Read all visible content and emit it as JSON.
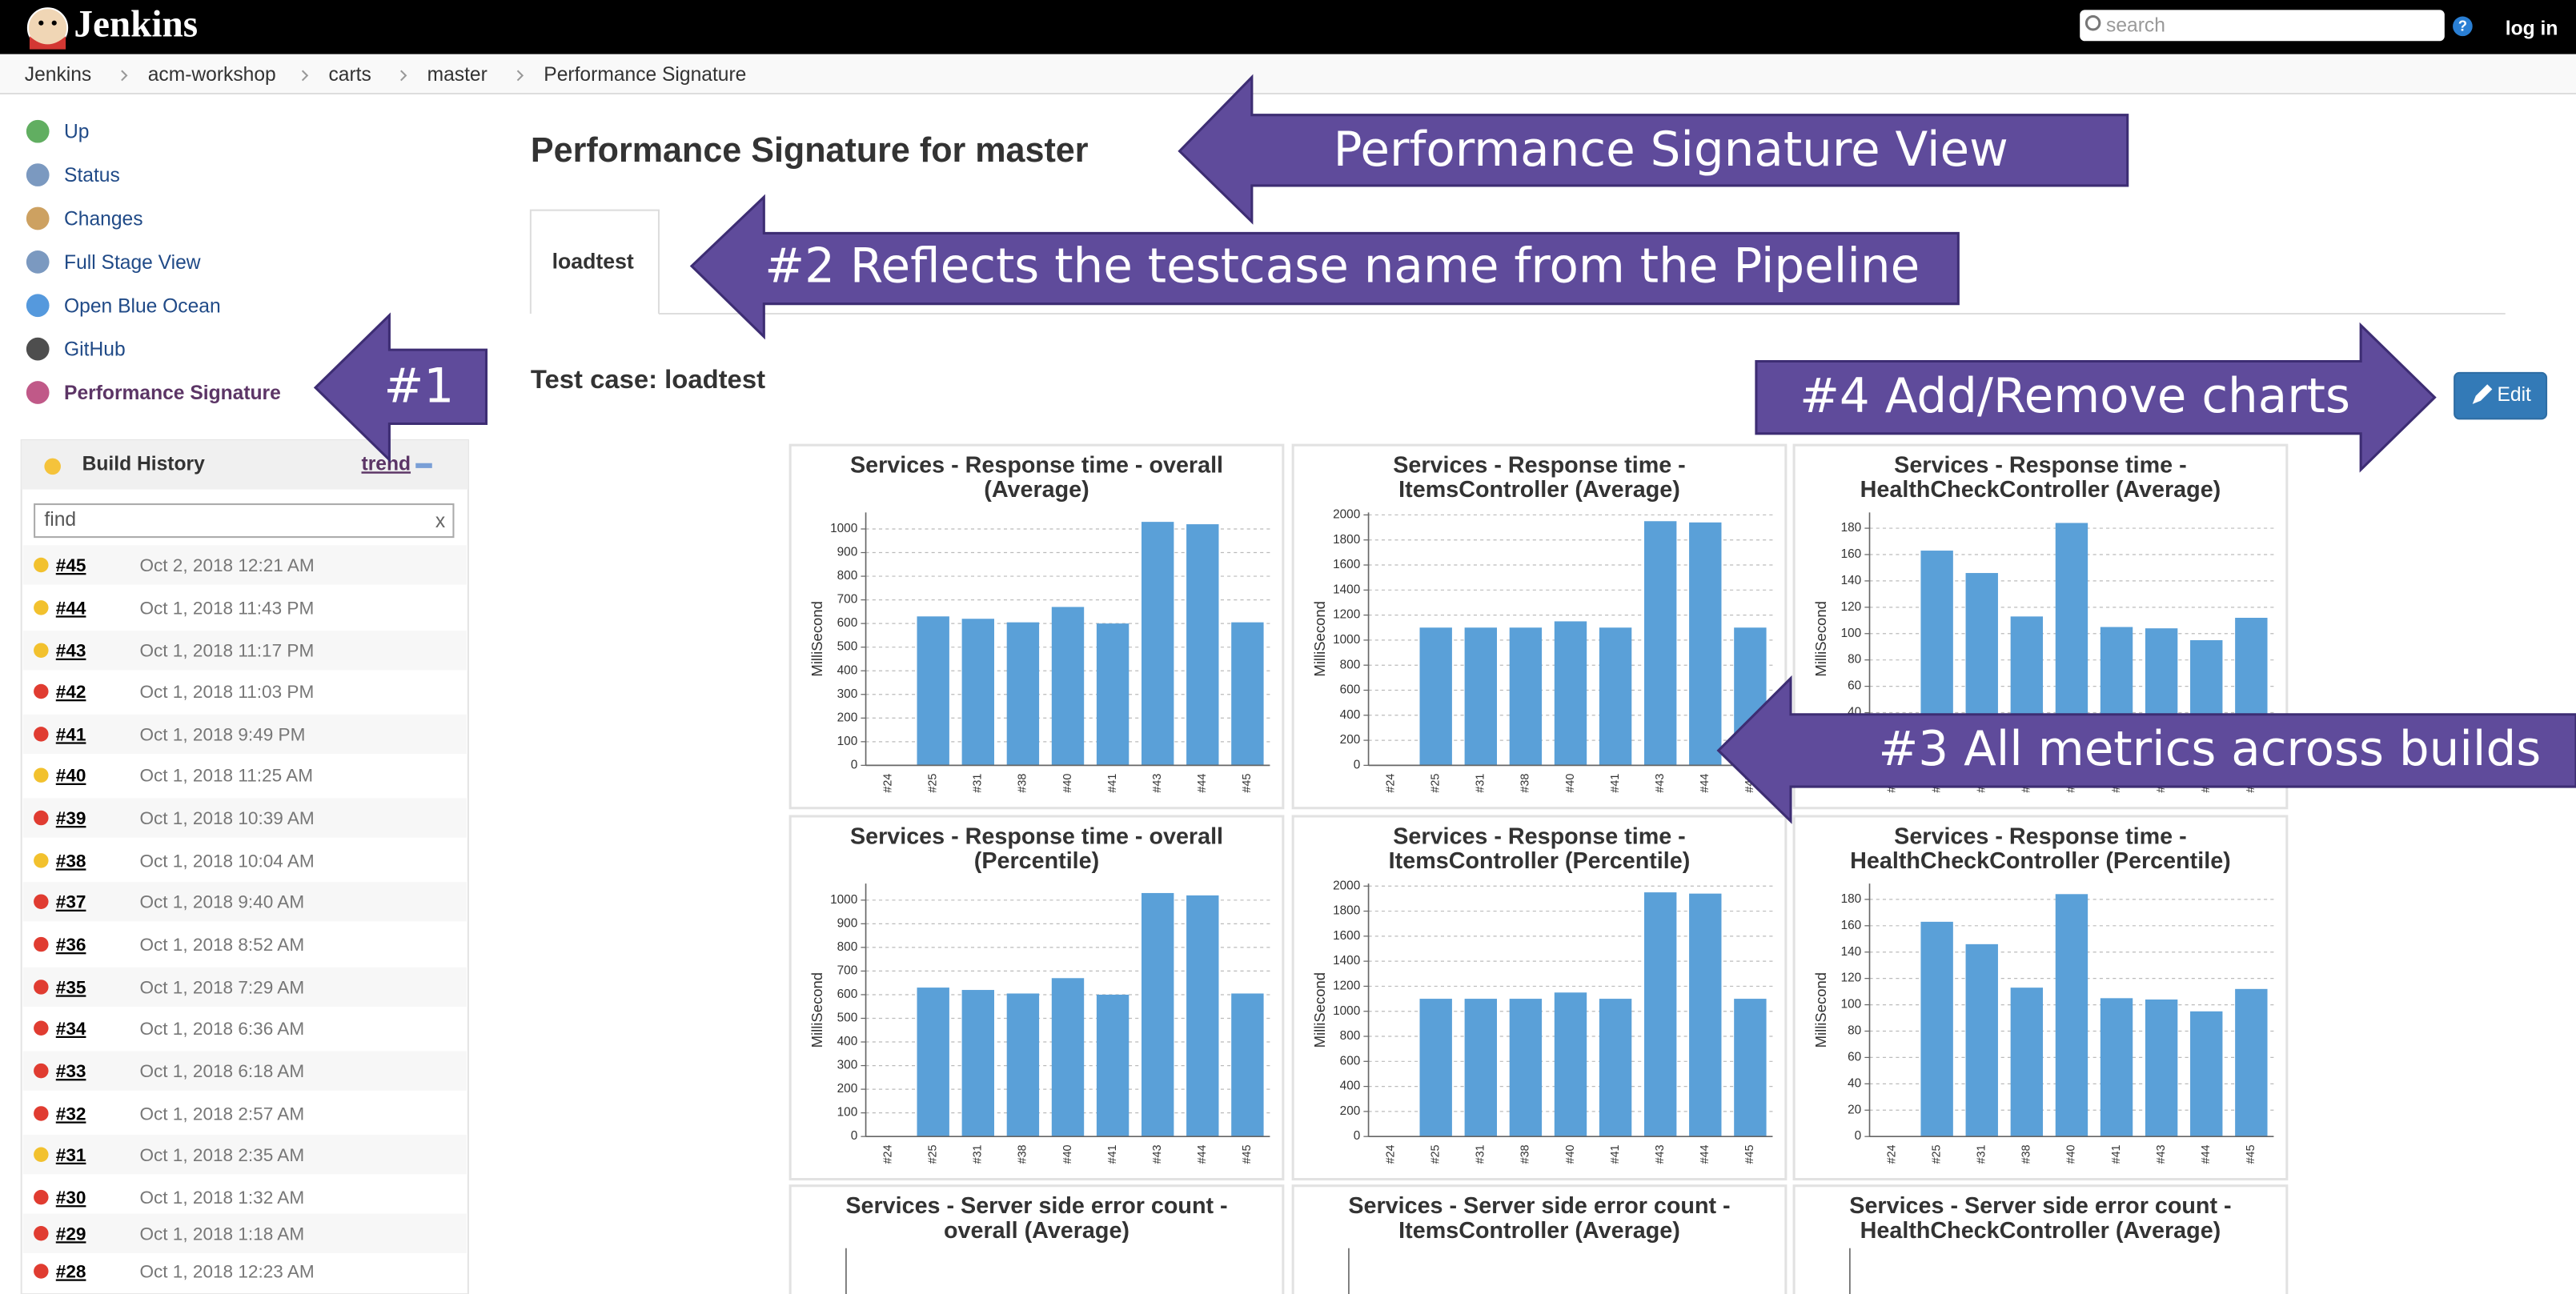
{
  "header": {
    "logo": "Jenkins",
    "search": "search",
    "login": "log in"
  },
  "breadcrumbs": [
    "Jenkins",
    "acm-workshop",
    "carts",
    "master",
    "Performance Signature"
  ],
  "sidebar": [
    "Up",
    "Status",
    "Changes",
    "Full Stage View",
    "Open Blue Ocean",
    "GitHub",
    "Performance Signature"
  ],
  "build_history": {
    "title": "Build History",
    "trend": "trend",
    "filter": "find",
    "clear": "x",
    "builds": [
      {
        "number": "#45",
        "date": "Oct 2, 2018 12:21 AM",
        "color": "#f2c12e"
      },
      {
        "number": "#44",
        "date": "Oct 1, 2018 11:43 PM",
        "color": "#f2c12e"
      },
      {
        "number": "#43",
        "date": "Oct 1, 2018 11:17 PM",
        "color": "#f2c12e"
      },
      {
        "number": "#42",
        "date": "Oct 1, 2018 11:03 PM",
        "color": "#e03c31"
      },
      {
        "number": "#41",
        "date": "Oct 1, 2018 9:49 PM",
        "color": "#e03c31"
      },
      {
        "number": "#40",
        "date": "Oct 1, 2018 11:25 AM",
        "color": "#f2c12e"
      },
      {
        "number": "#39",
        "date": "Oct 1, 2018 10:39 AM",
        "color": "#e03c31"
      },
      {
        "number": "#38",
        "date": "Oct 1, 2018 10:04 AM",
        "color": "#f2c12e"
      },
      {
        "number": "#37",
        "date": "Oct 1, 2018 9:40 AM",
        "color": "#e03c31"
      },
      {
        "number": "#36",
        "date": "Oct 1, 2018 8:52 AM",
        "color": "#e03c31"
      },
      {
        "number": "#35",
        "date": "Oct 1, 2018 7:29 AM",
        "color": "#e03c31"
      },
      {
        "number": "#34",
        "date": "Oct 1, 2018 6:36 AM",
        "color": "#e03c31"
      },
      {
        "number": "#33",
        "date": "Oct 1, 2018 6:18 AM",
        "color": "#e03c31"
      },
      {
        "number": "#32",
        "date": "Oct 1, 2018 2:57 AM",
        "color": "#e03c31"
      },
      {
        "number": "#31",
        "date": "Oct 1, 2018 2:35 AM",
        "color": "#f2c12e"
      },
      {
        "number": "#30",
        "date": "Oct 1, 2018 1:32 AM",
        "color": "#e03c31"
      },
      {
        "number": "#29",
        "date": "Oct 1, 2018 1:18 AM",
        "color": "#e03c31"
      },
      {
        "number": "#28",
        "date": "Oct 1, 2018 12:23 AM",
        "color": "#e03c31"
      }
    ]
  },
  "main": {
    "title": "Performance Signature for master",
    "tab": "loadtest",
    "test_case": "Test case: loadtest",
    "edit": "Edit"
  },
  "annotations": [
    "Performance Signature View",
    "#2 Reflects the testcase name from the Pipeline",
    "#1",
    "#4 Add/Remove charts",
    "#3 All metrics across builds"
  ],
  "charts": [
    {
      "type": "bar",
      "title": [
        "Services - Response time - overall",
        "(Average)"
      ],
      "ylabel": "MilliSecond",
      "color": "#5aa0d8",
      "categories": [
        "#24",
        "#25",
        "#31",
        "#38",
        "#40",
        "#41",
        "#43",
        "#44",
        "#45"
      ],
      "values": [
        null,
        630,
        620,
        605,
        670,
        600,
        1030,
        1020,
        605
      ],
      "ylim": [
        0,
        1070
      ],
      "yticks": [
        0,
        100,
        200,
        300,
        400,
        500,
        600,
        700,
        800,
        900,
        1000
      ],
      "grid": true
    },
    {
      "type": "bar",
      "title": [
        "Services - Response time -",
        "ItemsController (Average)"
      ],
      "ylabel": "MilliSecond",
      "color": "#5aa0d8",
      "categories": [
        "#24",
        "#25",
        "#31",
        "#38",
        "#40",
        "#41",
        "#43",
        "#44",
        "#45"
      ],
      "values": [
        null,
        1100,
        1100,
        1100,
        1150,
        1100,
        1950,
        1940,
        1100
      ],
      "ylim": [
        0,
        2020
      ],
      "yticks": [
        0,
        200,
        400,
        600,
        800,
        1000,
        1200,
        1400,
        1600,
        1800,
        2000
      ],
      "grid": true
    },
    {
      "type": "bar",
      "title": [
        "Services - Response time -",
        "HealthCheckController (Average)"
      ],
      "ylabel": "MilliSecond",
      "color": "#5aa0d8",
      "categories": [
        "#24",
        "#25",
        "#31",
        "#38",
        "#40",
        "#41",
        "#43",
        "#44",
        "#45"
      ],
      "values": [
        null,
        163,
        146,
        113,
        184,
        105,
        104,
        95,
        112
      ],
      "ylim": [
        0,
        192
      ],
      "yticks": [
        0,
        20,
        40,
        60,
        80,
        100,
        120,
        140,
        160,
        180
      ],
      "grid": true
    },
    {
      "type": "bar",
      "title": [
        "Services - Response time - overall",
        "(Percentile)"
      ],
      "ylabel": "MilliSecond",
      "color": "#5aa0d8",
      "categories": [
        "#24",
        "#25",
        "#31",
        "#38",
        "#40",
        "#41",
        "#43",
        "#44",
        "#45"
      ],
      "values": [
        null,
        630,
        620,
        605,
        670,
        600,
        1030,
        1020,
        605
      ],
      "ylim": [
        0,
        1070
      ],
      "yticks": [
        0,
        100,
        200,
        300,
        400,
        500,
        600,
        700,
        800,
        900,
        1000
      ],
      "grid": true
    },
    {
      "type": "bar",
      "title": [
        "Services - Response time -",
        "ItemsController (Percentile)"
      ],
      "ylabel": "MilliSecond",
      "color": "#5aa0d8",
      "categories": [
        "#24",
        "#25",
        "#31",
        "#38",
        "#40",
        "#41",
        "#43",
        "#44",
        "#45"
      ],
      "values": [
        null,
        1100,
        1100,
        1100,
        1150,
        1100,
        1950,
        1940,
        1100
      ],
      "ylim": [
        0,
        2020
      ],
      "yticks": [
        0,
        200,
        400,
        600,
        800,
        1000,
        1200,
        1400,
        1600,
        1800,
        2000
      ],
      "grid": true
    },
    {
      "type": "bar",
      "title": [
        "Services - Response time -",
        "HealthCheckController (Percentile)"
      ],
      "ylabel": "MilliSecond",
      "color": "#5aa0d8",
      "categories": [
        "#24",
        "#25",
        "#31",
        "#38",
        "#40",
        "#41",
        "#43",
        "#44",
        "#45"
      ],
      "values": [
        null,
        163,
        146,
        113,
        184,
        105,
        104,
        95,
        112
      ],
      "ylim": [
        0,
        192
      ],
      "yticks": [
        0,
        20,
        40,
        60,
        80,
        100,
        120,
        140,
        160,
        180
      ],
      "grid": true
    },
    {
      "type": "bar",
      "title": [
        "Services - Server side error count -",
        "overall (Average)"
      ]
    },
    {
      "type": "bar",
      "title": [
        "Services - Server side error count -",
        "ItemsController (Average)"
      ]
    },
    {
      "type": "bar",
      "title": [
        "Services - Server side error count -",
        "HealthCheckController (Average)"
      ]
    }
  ]
}
